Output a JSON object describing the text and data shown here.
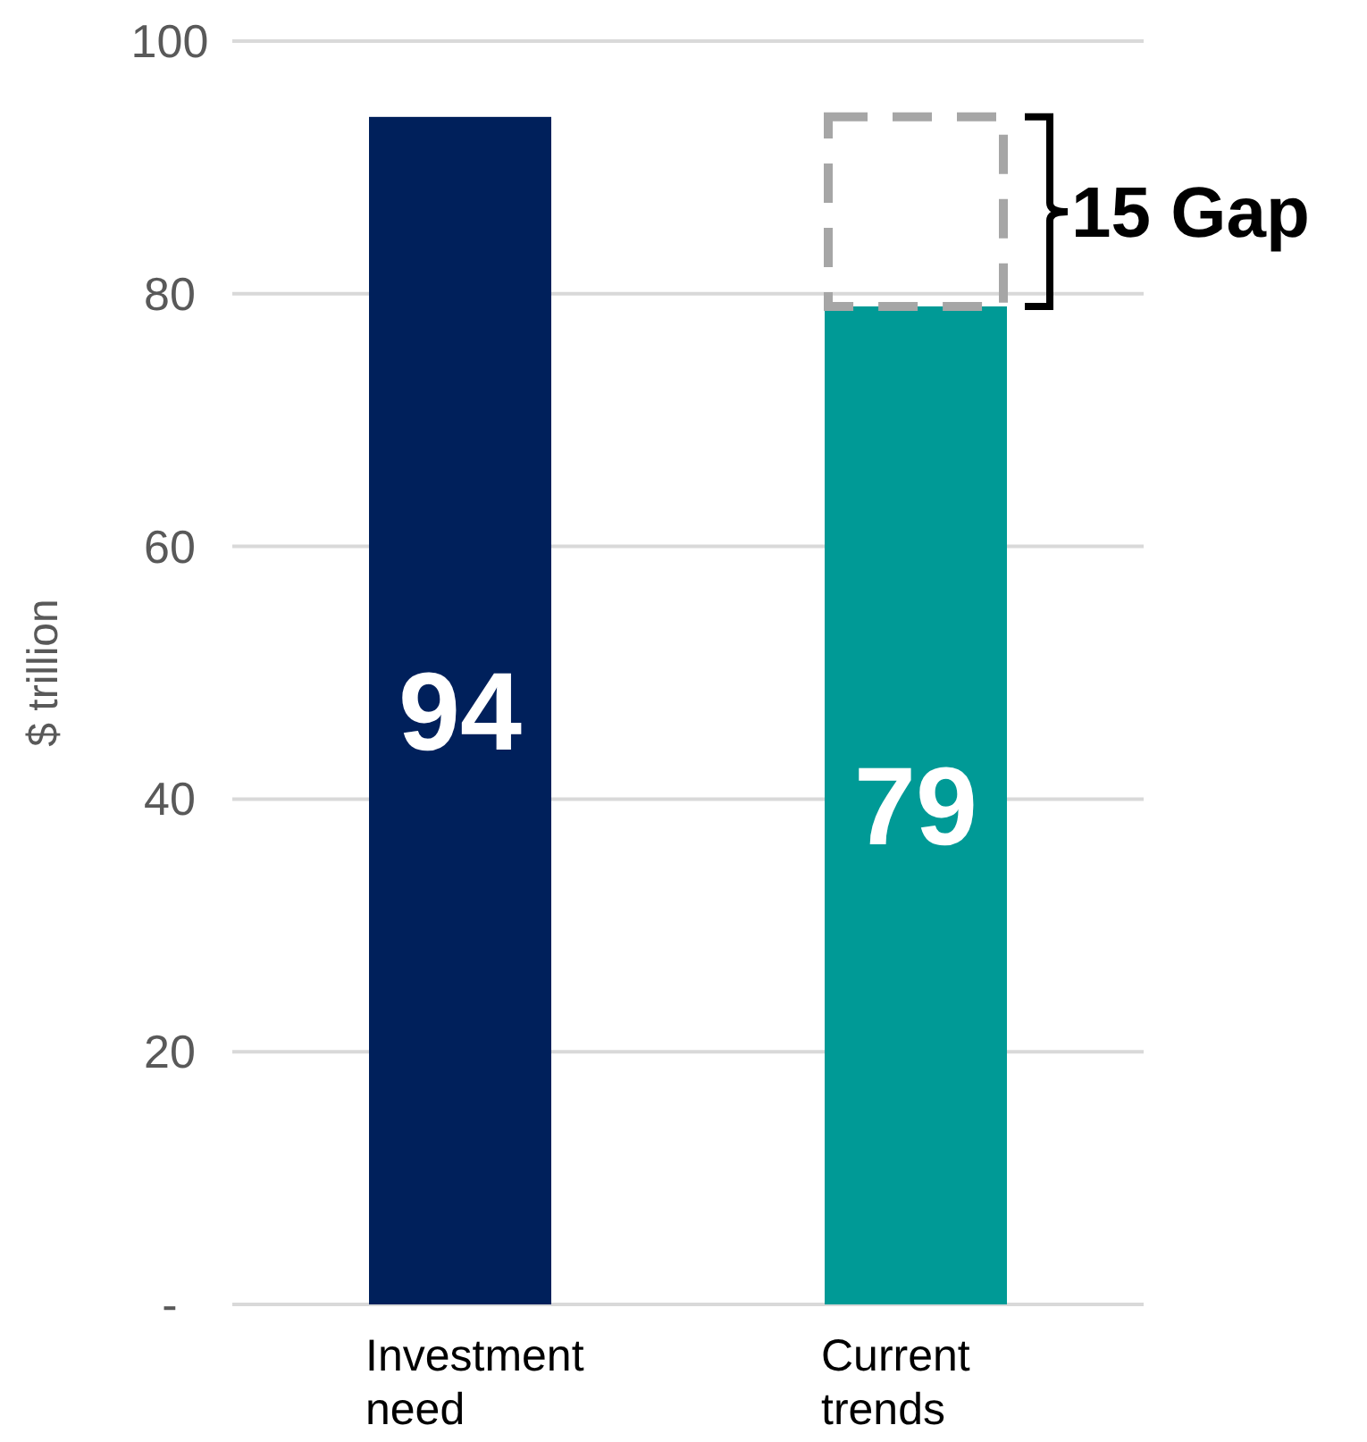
{
  "chart_data": {
    "type": "bar",
    "stacked": true,
    "categories": [
      "Investment need",
      "Current trends"
    ],
    "series": [
      {
        "colors": [
          "#00205b",
          "#009a96"
        ],
        "values": [
          94,
          79
        ],
        "value_labels": [
          "94",
          "79"
        ]
      },
      {
        "color": "#a6a6a6",
        "values": [
          null,
          15
        ],
        "line_style": "dashed"
      }
    ],
    "ylabel": "$ trillion",
    "ylim": [
      0,
      100
    ],
    "yticks": [
      {
        "value": 0,
        "label": "-"
      },
      20,
      40,
      60,
      80,
      100
    ],
    "grid": "y",
    "annotations": [
      "15 Gap"
    ]
  }
}
